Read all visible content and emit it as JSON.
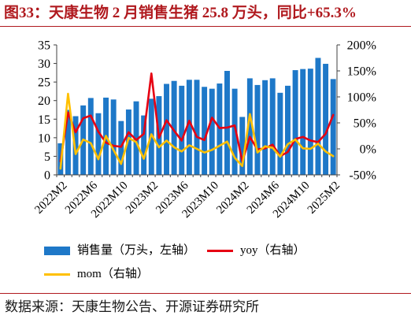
{
  "title": "图33：天康生物 2 月销售生猪 25.8 万头，同比+65.3%",
  "source": "数据来源：天康生物公告、开源证券研究所",
  "colors": {
    "title": "#B0191E",
    "rule": "#B0191E",
    "axis": "#404040"
  },
  "chart_data": {
    "type": "bar",
    "x_tick_labels": [
      "2022M2",
      "2022M6",
      "2022M10",
      "2023M2",
      "2023M6",
      "2023M10",
      "2024M2",
      "2024M6",
      "2024M10",
      "2025M2"
    ],
    "series": [
      {
        "name": "销售量（万头，左轴）",
        "type": "bar",
        "axis": "left",
        "color": "#1E78C8",
        "values": [
          8.5,
          17.5,
          15.8,
          18.7,
          20.7,
          16.6,
          20.8,
          20.3,
          14.5,
          17.6,
          19.8,
          16.0,
          20.5,
          21.2,
          24.5,
          25.3,
          24.0,
          25.6,
          25.6,
          23.7,
          23.2,
          24.6,
          28.0,
          23.2,
          15.6,
          26.0,
          24.2,
          25.5,
          26.0,
          22.1,
          24.0,
          28.2,
          28.5,
          28.6,
          31.5,
          29.9,
          25.8
        ]
      },
      {
        "name": "yoy（右轴）",
        "type": "line",
        "axis": "right",
        "color": "#E60012",
        "values": [
          -24,
          70,
          32,
          59,
          64,
          33,
          12,
          6,
          4,
          32,
          17,
          29,
          145,
          21,
          55,
          35,
          16,
          54,
          23,
          17,
          60,
          40,
          41,
          45,
          -24,
          23,
          -1,
          1,
          8,
          -14,
          -6,
          19,
          23,
          16,
          13,
          29,
          65.3
        ]
      },
      {
        "name": "mom（右轴）",
        "type": "line",
        "axis": "right",
        "color": "#FFC000",
        "values": [
          -38,
          106,
          -10,
          18,
          11,
          -20,
          25,
          -2,
          -29,
          21,
          13,
          -19,
          28,
          3,
          16,
          3,
          -5,
          7,
          0,
          -7,
          -2,
          6,
          14,
          -17,
          -33,
          67,
          -7,
          5,
          2,
          -15,
          9,
          18,
          1,
          0,
          10,
          -5,
          -14
        ]
      }
    ],
    "y_left": {
      "range": [
        0,
        35
      ],
      "ticks": [
        0,
        5,
        10,
        15,
        20,
        25,
        30,
        35
      ]
    },
    "y_right": {
      "range": [
        -50,
        200
      ],
      "ticks": [
        -50,
        0,
        50,
        100,
        150,
        200
      ],
      "tick_labels": [
        "-50%",
        "0%",
        "50%",
        "100%",
        "150%",
        "200%"
      ]
    },
    "grid": false,
    "legend_position": "bottom"
  }
}
